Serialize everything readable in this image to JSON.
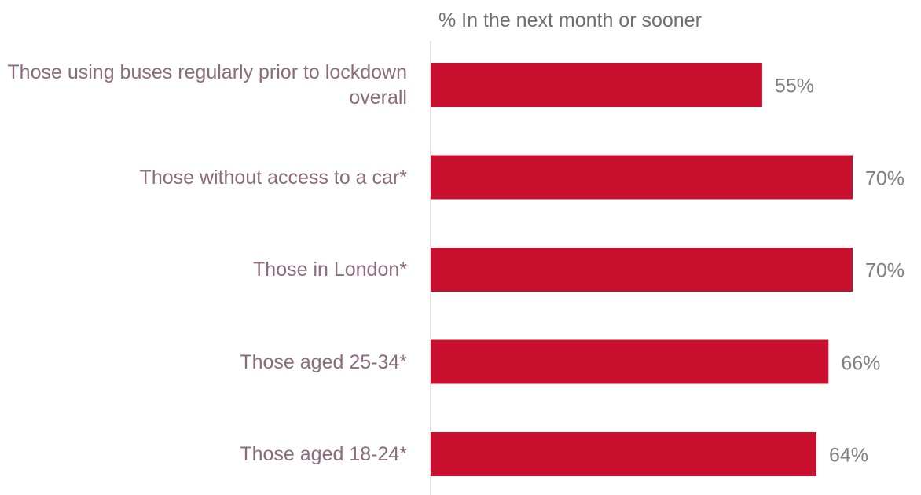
{
  "chart_data": {
    "type": "bar",
    "orientation": "horizontal",
    "title": "% In the next month or sooner",
    "categories": [
      "Those using buses regularly prior to lockdown overall",
      "Those without access to a car*",
      "Those in London*",
      "Those aged 25-34*",
      "Those aged 18-24*"
    ],
    "values": [
      55,
      70,
      70,
      66,
      64
    ],
    "value_labels": [
      "55%",
      "70%",
      "70%",
      "66%",
      "64%"
    ],
    "color": "#c8102e"
  }
}
